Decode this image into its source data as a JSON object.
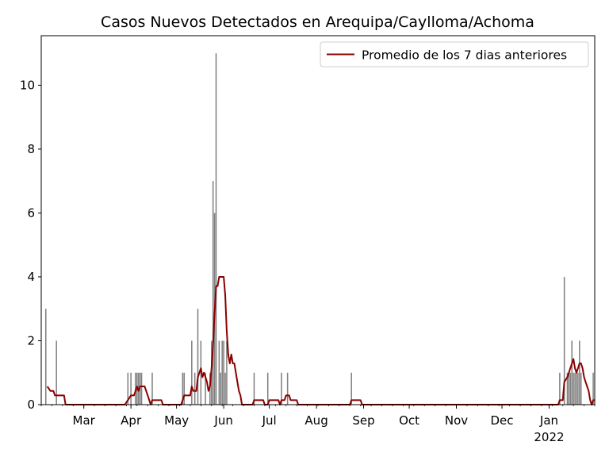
{
  "chart_data": {
    "type": "bar",
    "title": "Casos Nuevos Detectados en Arequipa/Caylloma/Achoma",
    "xlabel": "",
    "ylabel": "",
    "x_range": [
      "2021-02-01",
      "2022-01-31"
    ],
    "ylim": [
      0,
      11.55
    ],
    "y_ticks": [
      0,
      2,
      4,
      6,
      8,
      10
    ],
    "x_ticks": [
      {
        "date": "2021-03-01",
        "label": "Mar"
      },
      {
        "date": "2021-04-01",
        "label": "Apr"
      },
      {
        "date": "2021-05-01",
        "label": "May"
      },
      {
        "date": "2021-06-01",
        "label": "Jun"
      },
      {
        "date": "2021-07-01",
        "label": "Jul"
      },
      {
        "date": "2021-08-01",
        "label": "Aug"
      },
      {
        "date": "2021-09-01",
        "label": "Sep"
      },
      {
        "date": "2021-10-01",
        "label": "Oct"
      },
      {
        "date": "2021-11-01",
        "label": "Nov"
      },
      {
        "date": "2021-12-01",
        "label": "Dec"
      },
      {
        "date": "2022-01-01",
        "label": "Jan",
        "sublabel": "2022"
      }
    ],
    "grid": false,
    "legend_position": "top-right",
    "bar_color": "#808080",
    "line_color": "#8b0000",
    "series": [
      {
        "kind": "bar",
        "points": [
          [
            "2021-02-04",
            3
          ],
          [
            "2021-02-11",
            2
          ],
          [
            "2021-03-30",
            1
          ],
          [
            "2021-04-01",
            1
          ],
          [
            "2021-04-04",
            1
          ],
          [
            "2021-04-05",
            1
          ],
          [
            "2021-04-06",
            1
          ],
          [
            "2021-04-07",
            1
          ],
          [
            "2021-04-08",
            1
          ],
          [
            "2021-04-15",
            1
          ],
          [
            "2021-05-05",
            1
          ],
          [
            "2021-05-06",
            1
          ],
          [
            "2021-05-11",
            2
          ],
          [
            "2021-05-13",
            1
          ],
          [
            "2021-05-15",
            3
          ],
          [
            "2021-05-17",
            2
          ],
          [
            "2021-05-20",
            1
          ],
          [
            "2021-05-23",
            1
          ],
          [
            "2021-05-24",
            2
          ],
          [
            "2021-05-25",
            7
          ],
          [
            "2021-05-26",
            6
          ],
          [
            "2021-05-27",
            11
          ],
          [
            "2021-05-29",
            2
          ],
          [
            "2021-05-30",
            1
          ],
          [
            "2021-05-31",
            2
          ],
          [
            "2021-06-01",
            2
          ],
          [
            "2021-06-02",
            1
          ],
          [
            "2021-06-03",
            2
          ],
          [
            "2021-06-21",
            1
          ],
          [
            "2021-06-30",
            1
          ],
          [
            "2021-07-09",
            1
          ],
          [
            "2021-07-13",
            1
          ],
          [
            "2021-08-24",
            1
          ],
          [
            "2022-01-08",
            1
          ],
          [
            "2022-01-11",
            4
          ],
          [
            "2022-01-13",
            1
          ],
          [
            "2022-01-14",
            1
          ],
          [
            "2022-01-15",
            1
          ],
          [
            "2022-01-16",
            2
          ],
          [
            "2022-01-17",
            1
          ],
          [
            "2022-01-18",
            1
          ],
          [
            "2022-01-19",
            1
          ],
          [
            "2022-01-20",
            1
          ],
          [
            "2022-01-21",
            2
          ],
          [
            "2022-01-22",
            1
          ],
          [
            "2022-01-30",
            1
          ]
        ]
      },
      {
        "kind": "line",
        "name": "Promedio de los 7 dias anteriores",
        "points": [
          [
            "2021-02-05",
            0.57
          ],
          [
            "2021-02-07",
            0.43
          ],
          [
            "2021-02-09",
            0.43
          ],
          [
            "2021-02-10",
            0.29
          ],
          [
            "2021-02-16",
            0.29
          ],
          [
            "2021-02-17",
            0
          ],
          [
            "2021-03-28",
            0
          ],
          [
            "2021-03-30",
            0.14
          ],
          [
            "2021-04-01",
            0.29
          ],
          [
            "2021-04-03",
            0.29
          ],
          [
            "2021-04-04",
            0.43
          ],
          [
            "2021-04-05",
            0.57
          ],
          [
            "2021-04-06",
            0.43
          ],
          [
            "2021-04-07",
            0.57
          ],
          [
            "2021-04-10",
            0.57
          ],
          [
            "2021-04-12",
            0.29
          ],
          [
            "2021-04-14",
            0
          ],
          [
            "2021-04-15",
            0.14
          ],
          [
            "2021-04-21",
            0.14
          ],
          [
            "2021-04-22",
            0
          ],
          [
            "2021-05-04",
            0
          ],
          [
            "2021-05-05",
            0.14
          ],
          [
            "2021-05-06",
            0.29
          ],
          [
            "2021-05-10",
            0.29
          ],
          [
            "2021-05-11",
            0.57
          ],
          [
            "2021-05-12",
            0.43
          ],
          [
            "2021-05-14",
            0.43
          ],
          [
            "2021-05-15",
            0.86
          ],
          [
            "2021-05-16",
            1.0
          ],
          [
            "2021-05-17",
            1.14
          ],
          [
            "2021-05-18",
            0.86
          ],
          [
            "2021-05-19",
            1.0
          ],
          [
            "2021-05-20",
            0.86
          ],
          [
            "2021-05-21",
            0.71
          ],
          [
            "2021-05-22",
            0.43
          ],
          [
            "2021-05-23",
            0.57
          ],
          [
            "2021-05-24",
            1.14
          ],
          [
            "2021-05-25",
            1.86
          ],
          [
            "2021-05-26",
            2.86
          ],
          [
            "2021-05-27",
            3.71
          ],
          [
            "2021-05-28",
            3.71
          ],
          [
            "2021-05-29",
            4.0
          ],
          [
            "2021-06-01",
            4.0
          ],
          [
            "2021-06-02",
            3.43
          ],
          [
            "2021-06-03",
            2.29
          ],
          [
            "2021-06-04",
            1.57
          ],
          [
            "2021-06-05",
            1.29
          ],
          [
            "2021-06-06",
            1.57
          ],
          [
            "2021-06-07",
            1.29
          ],
          [
            "2021-06-08",
            1.29
          ],
          [
            "2021-06-09",
            1.0
          ],
          [
            "2021-06-10",
            0.71
          ],
          [
            "2021-06-11",
            0.43
          ],
          [
            "2021-06-12",
            0.29
          ],
          [
            "2021-06-13",
            0
          ],
          [
            "2021-06-20",
            0
          ],
          [
            "2021-06-21",
            0.14
          ],
          [
            "2021-06-27",
            0.14
          ],
          [
            "2021-06-28",
            0
          ],
          [
            "2021-06-30",
            0
          ],
          [
            "2021-07-01",
            0.14
          ],
          [
            "2021-07-07",
            0.14
          ],
          [
            "2021-07-08",
            0
          ],
          [
            "2021-07-09",
            0.14
          ],
          [
            "2021-07-11",
            0.14
          ],
          [
            "2021-07-12",
            0.29
          ],
          [
            "2021-07-14",
            0.29
          ],
          [
            "2021-07-15",
            0.14
          ],
          [
            "2021-07-19",
            0.14
          ],
          [
            "2021-07-20",
            0
          ],
          [
            "2021-08-23",
            0
          ],
          [
            "2021-08-24",
            0.14
          ],
          [
            "2021-08-30",
            0.14
          ],
          [
            "2021-08-31",
            0
          ],
          [
            "2022-01-07",
            0
          ],
          [
            "2022-01-08",
            0.14
          ],
          [
            "2022-01-10",
            0.14
          ],
          [
            "2022-01-11",
            0.71
          ],
          [
            "2022-01-13",
            0.86
          ],
          [
            "2022-01-14",
            1.0
          ],
          [
            "2022-01-16",
            1.29
          ],
          [
            "2022-01-17",
            1.43
          ],
          [
            "2022-01-18",
            1.14
          ],
          [
            "2022-01-19",
            1.0
          ],
          [
            "2022-01-20",
            1.14
          ],
          [
            "2022-01-21",
            1.29
          ],
          [
            "2022-01-22",
            1.29
          ],
          [
            "2022-01-23",
            1.14
          ],
          [
            "2022-01-24",
            0.86
          ],
          [
            "2022-01-25",
            0.71
          ],
          [
            "2022-01-26",
            0.57
          ],
          [
            "2022-01-27",
            0.43
          ],
          [
            "2022-01-28",
            0.14
          ],
          [
            "2022-01-29",
            0
          ],
          [
            "2022-01-30",
            0.14
          ],
          [
            "2022-01-31",
            0.14
          ]
        ]
      }
    ]
  }
}
